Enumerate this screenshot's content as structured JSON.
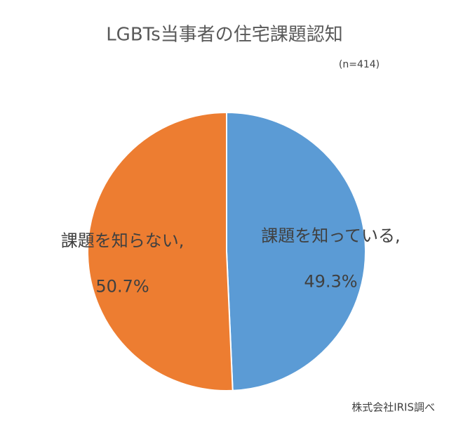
{
  "chart_data": {
    "type": "pie",
    "title": "LGBTs当事者の住宅課題認知",
    "subtitle": "(n=414)",
    "source": "株式会社IRIS調べ",
    "categories": [
      "課題を知っている,",
      "課題を知らない,"
    ],
    "values": [
      49.3,
      50.7
    ],
    "value_labels": [
      "49.3%",
      "50.7%"
    ],
    "colors": [
      "#5b9bd5",
      "#ed7d31"
    ]
  }
}
